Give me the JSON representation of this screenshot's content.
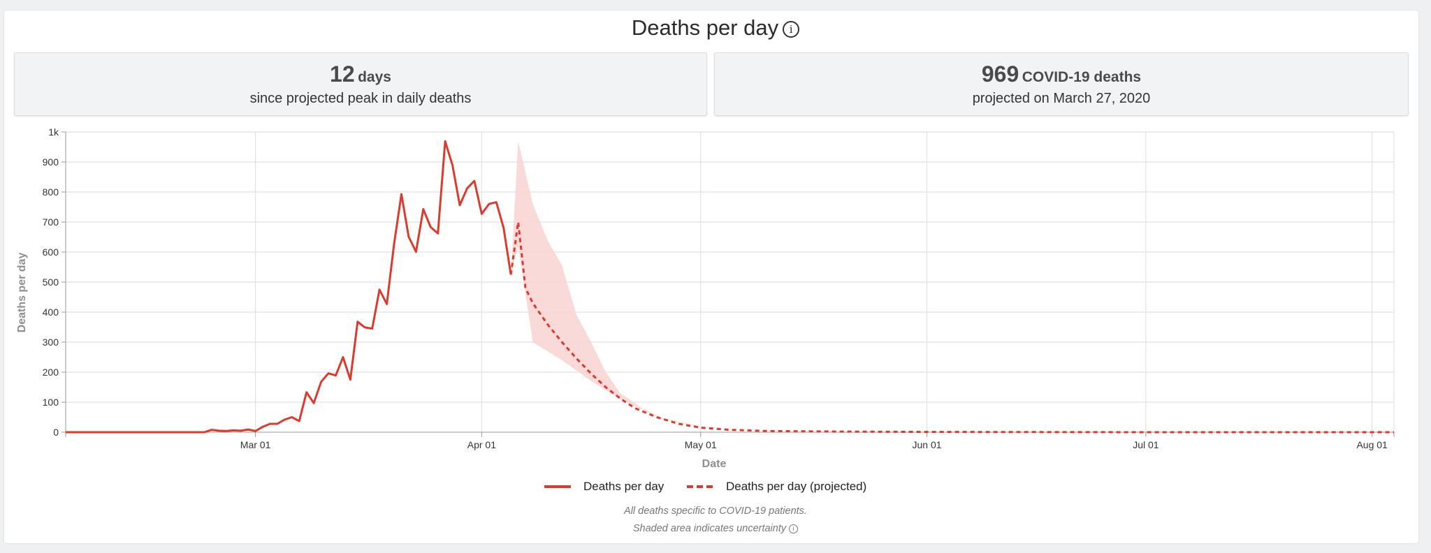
{
  "header": {
    "title": "Deaths per day",
    "info_icon": "info-icon"
  },
  "stats": {
    "peak_days_number": "12",
    "peak_days_unit": "days",
    "peak_days_caption": "since projected peak in daily deaths",
    "peak_deaths_number": "969",
    "peak_deaths_unit": "COVID-19 deaths",
    "peak_deaths_caption": "projected on March 27, 2020"
  },
  "footnotes": {
    "line1": "All deaths specific to COVID-19 patients.",
    "line2": "Shaded area indicates uncertainty"
  },
  "colors": {
    "actual": "#dd3a2e",
    "projected": "#dd3a2e",
    "uncertainty": "#f9d3d1",
    "grid": "#e1e1e1",
    "axis_label": "#8e8e8e"
  },
  "chart_data": {
    "type": "line",
    "xlabel": "Date",
    "ylabel": "Deaths per day",
    "x_tick_labels": [
      "Mar 01",
      "Apr 01",
      "May 01",
      "Jun 01",
      "Jul 01",
      "Aug 01"
    ],
    "x_tick_dates": [
      "2020-03-01",
      "2020-04-01",
      "2020-05-01",
      "2020-06-01",
      "2020-07-01",
      "2020-08-01"
    ],
    "y_tick_labels": [
      "0",
      "100",
      "200",
      "300",
      "400",
      "500",
      "600",
      "700",
      "800",
      "900",
      "1k"
    ],
    "xlim": [
      "2020-02-04",
      "2020-08-04"
    ],
    "ylim": [
      0,
      1000
    ],
    "grid": true,
    "legend_position": "bottom-center",
    "series": [
      {
        "name": "Deaths per day",
        "style": "solid",
        "points": [
          [
            "2020-02-04",
            0
          ],
          [
            "2020-02-23",
            0
          ],
          [
            "2020-02-24",
            8
          ],
          [
            "2020-02-25",
            5
          ],
          [
            "2020-02-26",
            4
          ],
          [
            "2020-02-27",
            6
          ],
          [
            "2020-02-28",
            5
          ],
          [
            "2020-02-29",
            9
          ],
          [
            "2020-03-01",
            4
          ],
          [
            "2020-03-02",
            18
          ],
          [
            "2020-03-03",
            28
          ],
          [
            "2020-03-04",
            28
          ],
          [
            "2020-03-05",
            42
          ],
          [
            "2020-03-06",
            50
          ],
          [
            "2020-03-07",
            37
          ],
          [
            "2020-03-08",
            133
          ],
          [
            "2020-03-09",
            97
          ],
          [
            "2020-03-10",
            168
          ],
          [
            "2020-03-11",
            196
          ],
          [
            "2020-03-12",
            189
          ],
          [
            "2020-03-13",
            250
          ],
          [
            "2020-03-14",
            175
          ],
          [
            "2020-03-15",
            368
          ],
          [
            "2020-03-16",
            349
          ],
          [
            "2020-03-17",
            345
          ],
          [
            "2020-03-18",
            475
          ],
          [
            "2020-03-19",
            427
          ],
          [
            "2020-03-20",
            627
          ],
          [
            "2020-03-21",
            793
          ],
          [
            "2020-03-22",
            651
          ],
          [
            "2020-03-23",
            601
          ],
          [
            "2020-03-24",
            743
          ],
          [
            "2020-03-25",
            683
          ],
          [
            "2020-03-26",
            662
          ],
          [
            "2020-03-27",
            969
          ],
          [
            "2020-03-28",
            889
          ],
          [
            "2020-03-29",
            756
          ],
          [
            "2020-03-30",
            812
          ],
          [
            "2020-03-31",
            837
          ],
          [
            "2020-04-01",
            727
          ],
          [
            "2020-04-02",
            760
          ],
          [
            "2020-04-03",
            766
          ],
          [
            "2020-04-04",
            681
          ],
          [
            "2020-04-05",
            525
          ]
        ]
      },
      {
        "name": "Deaths per day (projected)",
        "style": "dashed",
        "points": [
          [
            "2020-04-05",
            525
          ],
          [
            "2020-04-06",
            700
          ],
          [
            "2020-04-07",
            480
          ],
          [
            "2020-04-08",
            430
          ],
          [
            "2020-04-10",
            360
          ],
          [
            "2020-04-12",
            300
          ],
          [
            "2020-04-14",
            245
          ],
          [
            "2020-04-16",
            195
          ],
          [
            "2020-04-18",
            150
          ],
          [
            "2020-04-20",
            112
          ],
          [
            "2020-04-22",
            80
          ],
          [
            "2020-04-25",
            50
          ],
          [
            "2020-04-28",
            28
          ],
          [
            "2020-05-01",
            15
          ],
          [
            "2020-05-05",
            8
          ],
          [
            "2020-05-10",
            4
          ],
          [
            "2020-05-20",
            2
          ],
          [
            "2020-06-01",
            1
          ],
          [
            "2020-07-01",
            0
          ],
          [
            "2020-08-04",
            0
          ]
        ]
      }
    ],
    "uncertainty_band": {
      "upper": [
        [
          "2020-04-05",
          525
        ],
        [
          "2020-04-06",
          970
        ],
        [
          "2020-04-08",
          760
        ],
        [
          "2020-04-10",
          640
        ],
        [
          "2020-04-12",
          555
        ],
        [
          "2020-04-14",
          390
        ],
        [
          "2020-04-16",
          300
        ],
        [
          "2020-04-18",
          200
        ],
        [
          "2020-04-20",
          130
        ],
        [
          "2020-04-23",
          80
        ],
        [
          "2020-04-26",
          45
        ],
        [
          "2020-05-01",
          20
        ],
        [
          "2020-05-06",
          10
        ],
        [
          "2020-05-15",
          4
        ],
        [
          "2020-06-01",
          1
        ],
        [
          "2020-08-04",
          0
        ]
      ],
      "lower": [
        [
          "2020-04-05",
          525
        ],
        [
          "2020-04-06",
          620
        ],
        [
          "2020-04-08",
          300
        ],
        [
          "2020-04-10",
          270
        ],
        [
          "2020-04-12",
          240
        ],
        [
          "2020-04-14",
          205
        ],
        [
          "2020-04-16",
          170
        ],
        [
          "2020-04-18",
          140
        ],
        [
          "2020-04-20",
          110
        ],
        [
          "2020-04-23",
          75
        ],
        [
          "2020-04-26",
          42
        ],
        [
          "2020-05-01",
          18
        ],
        [
          "2020-05-06",
          9
        ],
        [
          "2020-05-15",
          3
        ],
        [
          "2020-06-01",
          1
        ],
        [
          "2020-08-04",
          0
        ]
      ]
    }
  }
}
